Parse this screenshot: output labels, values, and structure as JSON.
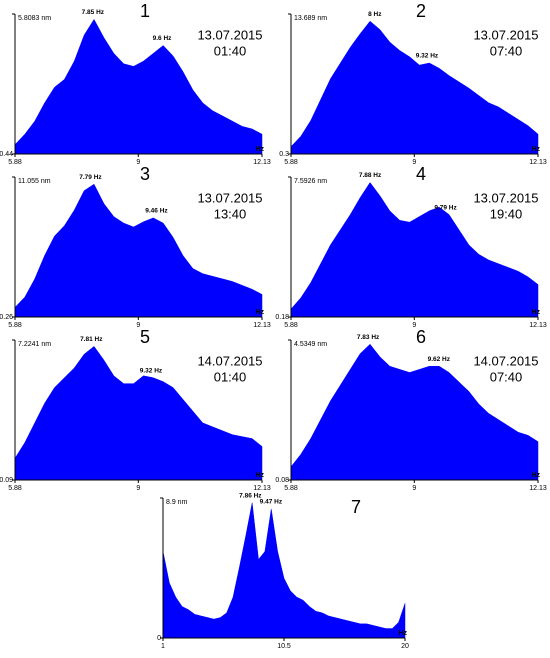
{
  "chart_data": [
    {
      "type": "area",
      "title": "1",
      "date": "13.07.2015",
      "time": "01:40",
      "color": "#0000ff",
      "xlabel": "Hz",
      "x": [
        5.88,
        6.13,
        6.38,
        6.63,
        6.88,
        7.13,
        7.38,
        7.63,
        7.88,
        8.13,
        8.38,
        8.63,
        8.88,
        9.13,
        9.38,
        9.63,
        9.88,
        10.13,
        10.38,
        10.63,
        10.88,
        11.13,
        11.38,
        11.63,
        11.88,
        12.13
      ],
      "values": [
        0.8,
        1.2,
        1.7,
        2.4,
        3.0,
        3.3,
        4.0,
        5.0,
        5.6,
        4.9,
        4.3,
        3.9,
        3.8,
        4.0,
        4.3,
        4.6,
        4.2,
        3.6,
        2.9,
        2.4,
        2.1,
        1.9,
        1.7,
        1.5,
        1.4,
        1.2
      ],
      "xlim": [
        5.88,
        12.13
      ],
      "xticks": [
        5.88,
        9,
        12.13
      ],
      "ylim": [
        0.44,
        5.8083
      ],
      "yticks": [
        0.44,
        {
          "value": 5.8083,
          "label": "5.8083 nm"
        }
      ],
      "peaks": [
        {
          "value": 7.85,
          "label": "7.85 Hz"
        },
        {
          "value": 9.6,
          "label": "9.6 Hz"
        }
      ]
    },
    {
      "type": "area",
      "title": "2",
      "date": "13.07.2015",
      "time": "07:40",
      "color": "#0000ff",
      "xlabel": "Hz",
      "x": [
        5.88,
        6.13,
        6.38,
        6.63,
        6.88,
        7.13,
        7.38,
        7.63,
        7.88,
        8.13,
        8.38,
        8.63,
        8.88,
        9.13,
        9.38,
        9.63,
        9.88,
        10.13,
        10.38,
        10.63,
        10.88,
        11.13,
        11.38,
        11.63,
        11.88,
        12.13
      ],
      "values": [
        1.0,
        2.0,
        3.5,
        5.5,
        7.5,
        9.0,
        10.5,
        11.8,
        13.0,
        12.2,
        11.0,
        10.2,
        9.6,
        8.8,
        9.0,
        8.5,
        7.8,
        7.2,
        6.6,
        5.9,
        5.2,
        4.8,
        4.2,
        3.6,
        3.0,
        2.2
      ],
      "xlim": [
        5.88,
        12.13
      ],
      "xticks": [
        5.88,
        9,
        12.13
      ],
      "ylim": [
        0.3,
        13.689
      ],
      "yticks": [
        0.3,
        {
          "value": 13.689,
          "label": "13.689 nm"
        }
      ],
      "peaks": [
        {
          "value": 8,
          "label": "8 Hz"
        },
        {
          "value": 9.32,
          "label": "9.32 Hz"
        }
      ]
    },
    {
      "type": "area",
      "title": "3",
      "date": "13.07.2015",
      "time": "13:40",
      "color": "#0000ff",
      "xlabel": "Hz",
      "x": [
        5.88,
        6.13,
        6.38,
        6.63,
        6.88,
        7.13,
        7.38,
        7.63,
        7.88,
        8.13,
        8.38,
        8.63,
        8.88,
        9.13,
        9.38,
        9.63,
        9.88,
        10.13,
        10.38,
        10.63,
        10.88,
        11.13,
        11.38,
        11.63,
        11.88,
        12.13
      ],
      "values": [
        1.0,
        1.8,
        3.2,
        5.0,
        6.5,
        7.3,
        8.5,
        10.0,
        10.5,
        9.0,
        8.0,
        7.5,
        7.2,
        7.6,
        7.9,
        7.5,
        6.4,
        5.0,
        4.0,
        3.6,
        3.4,
        3.2,
        3.0,
        2.7,
        2.4,
        2.0
      ],
      "xlim": [
        5.88,
        12.13
      ],
      "xticks": [
        5.88,
        9,
        12.13
      ],
      "ylim": [
        0.26,
        11.055
      ],
      "yticks": [
        0.26,
        {
          "value": 11.055,
          "label": "11.055 nm"
        }
      ],
      "peaks": [
        {
          "value": 7.79,
          "label": "7.79 Hz"
        },
        {
          "value": 9.46,
          "label": "9.46 Hz"
        }
      ]
    },
    {
      "type": "area",
      "title": "4",
      "date": "13.07.2015",
      "time": "19:40",
      "color": "#0000ff",
      "xlabel": "Hz",
      "x": [
        5.88,
        6.13,
        6.38,
        6.63,
        6.88,
        7.13,
        7.38,
        7.63,
        7.88,
        8.13,
        8.38,
        8.63,
        8.88,
        9.13,
        9.38,
        9.63,
        9.88,
        10.13,
        10.38,
        10.63,
        10.88,
        11.13,
        11.38,
        11.63,
        11.88,
        12.13
      ],
      "values": [
        0.6,
        1.2,
        2.0,
        3.0,
        4.0,
        4.8,
        5.6,
        6.5,
        7.3,
        6.6,
        5.8,
        5.3,
        5.2,
        5.5,
        5.8,
        6.0,
        5.6,
        4.8,
        4.0,
        3.5,
        3.2,
        3.0,
        2.8,
        2.6,
        2.3,
        1.9
      ],
      "xlim": [
        5.88,
        12.13
      ],
      "xticks": [
        5.88,
        9,
        12.13
      ],
      "ylim": [
        0.18,
        7.5926
      ],
      "yticks": [
        0.18,
        {
          "value": 7.5926,
          "label": "7.5926 nm"
        }
      ],
      "peaks": [
        {
          "value": 7.88,
          "label": "7.88 Hz"
        },
        {
          "value": 9.79,
          "label": "9.79 Hz"
        }
      ]
    },
    {
      "type": "area",
      "title": "5",
      "date": "14.07.2015",
      "time": "01:40",
      "color": "#0000ff",
      "xlabel": "Hz",
      "x": [
        5.88,
        6.13,
        6.38,
        6.63,
        6.88,
        7.13,
        7.38,
        7.63,
        7.88,
        8.13,
        8.38,
        8.63,
        8.88,
        9.13,
        9.38,
        9.63,
        9.88,
        10.13,
        10.38,
        10.63,
        10.88,
        11.13,
        11.38,
        11.63,
        11.88,
        12.13
      ],
      "values": [
        1.2,
        2.0,
        3.0,
        4.0,
        4.8,
        5.3,
        5.8,
        6.5,
        6.9,
        6.2,
        5.4,
        5.0,
        5.0,
        5.4,
        5.3,
        5.1,
        4.8,
        4.2,
        3.6,
        3.0,
        2.8,
        2.6,
        2.4,
        2.3,
        2.2,
        1.8
      ],
      "xlim": [
        5.88,
        12.13
      ],
      "xticks": [
        5.88,
        9,
        12.13
      ],
      "ylim": [
        0.09,
        7.2241
      ],
      "yticks": [
        0.09,
        {
          "value": 7.2241,
          "label": "7.2241 nm"
        }
      ],
      "peaks": [
        {
          "value": 7.81,
          "label": "7.81 Hz"
        },
        {
          "value": 9.32,
          "label": "9.32 Hz"
        }
      ]
    },
    {
      "type": "area",
      "title": "6",
      "date": "14.07.2015",
      "time": "07:40",
      "color": "#0000ff",
      "xlabel": "Hz",
      "x": [
        5.88,
        6.13,
        6.38,
        6.63,
        6.88,
        7.13,
        7.38,
        7.63,
        7.88,
        8.13,
        8.38,
        8.63,
        8.88,
        9.13,
        9.38,
        9.63,
        9.88,
        10.13,
        10.38,
        10.63,
        10.88,
        11.13,
        11.38,
        11.63,
        11.88,
        12.13
      ],
      "values": [
        0.5,
        0.9,
        1.4,
        2.0,
        2.6,
        3.1,
        3.6,
        4.1,
        4.4,
        4.0,
        3.7,
        3.6,
        3.5,
        3.6,
        3.7,
        3.7,
        3.5,
        3.2,
        2.9,
        2.5,
        2.2,
        2.0,
        1.8,
        1.6,
        1.5,
        1.3
      ],
      "xlim": [
        5.88,
        12.13
      ],
      "xticks": [
        5.88,
        9,
        12.13
      ],
      "ylim": [
        0.08,
        4.5349
      ],
      "yticks": [
        0.08,
        {
          "value": 4.5349,
          "label": "4.5349 nm"
        }
      ],
      "peaks": [
        {
          "value": 7.83,
          "label": "7.83 Hz"
        },
        {
          "value": 9.62,
          "label": "9.62 Hz"
        }
      ]
    },
    {
      "type": "area",
      "title": "7",
      "color": "#0000ff",
      "xlabel": "Hz",
      "x": [
        1,
        1.5,
        2,
        2.5,
        3,
        3.5,
        4,
        4.5,
        5,
        5.5,
        6,
        6.5,
        7,
        7.5,
        8,
        8.5,
        9,
        9.5,
        10,
        10.5,
        11,
        11.5,
        12,
        12.5,
        13,
        13.5,
        14,
        14.5,
        15,
        15.5,
        16,
        16.5,
        17,
        17.5,
        18,
        18.5,
        19,
        19.5,
        20
      ],
      "values": [
        5.5,
        3.5,
        2.6,
        2.0,
        1.8,
        1.5,
        1.4,
        1.3,
        1.2,
        1.3,
        1.6,
        2.6,
        4.5,
        6.5,
        8.6,
        5.0,
        5.5,
        8.2,
        5.5,
        3.8,
        3.0,
        2.6,
        2.4,
        2.0,
        1.7,
        1.6,
        1.4,
        1.3,
        1.2,
        1.1,
        1.0,
        0.9,
        0.9,
        0.8,
        0.7,
        0.6,
        0.6,
        1.0,
        2.2
      ],
      "xlim": [
        1,
        20
      ],
      "xticks": [
        1,
        10.5,
        20
      ],
      "ylim": [
        0,
        8.9
      ],
      "yticks": [
        0,
        {
          "value": 8.9,
          "label": "8.9 nm"
        }
      ],
      "peaks": [
        {
          "value": 7.86,
          "label": "7.86 Hz"
        },
        {
          "value": 9.47,
          "label": "9.47 Hz"
        }
      ]
    }
  ]
}
